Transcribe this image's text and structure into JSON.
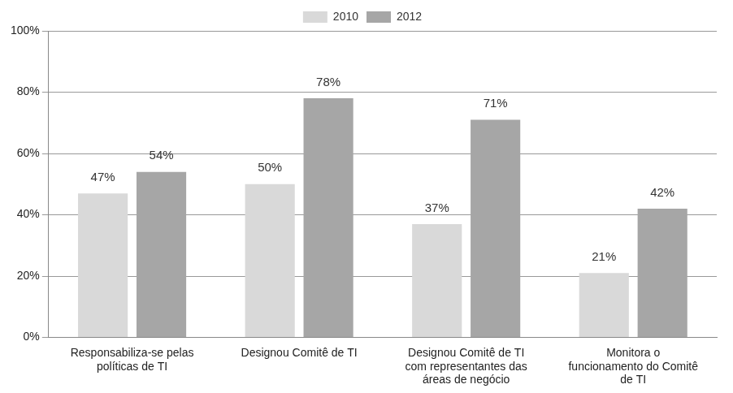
{
  "chart_data": {
    "type": "bar",
    "categories": [
      "Responsabiliza-se pelas políticas de TI",
      "Designou Comitê de TI",
      "Designou Comitê de TI com representantes das áreas de negócio",
      "Monitora o funcionamento do Comitê de TI"
    ],
    "series": [
      {
        "name": "2010",
        "color": "#d9d9d9",
        "values": [
          47,
          50,
          37,
          21
        ],
        "value_labels": [
          "47%",
          "50%",
          "37%",
          "21%"
        ]
      },
      {
        "name": "2012",
        "color": "#a6a6a6",
        "values": [
          54,
          78,
          71,
          42
        ],
        "value_labels": [
          "54%",
          "78%",
          "71%",
          "42%"
        ]
      }
    ],
    "ylim": [
      0,
      100
    ],
    "yticks": [
      {
        "value": 0,
        "label": "0%"
      },
      {
        "value": 20,
        "label": "20%"
      },
      {
        "value": 40,
        "label": "40%"
      },
      {
        "value": 60,
        "label": "60%"
      },
      {
        "value": 80,
        "label": "80%"
      },
      {
        "value": 100,
        "label": "100%"
      }
    ],
    "grid": true,
    "legend": "top",
    "data_labels": true
  }
}
